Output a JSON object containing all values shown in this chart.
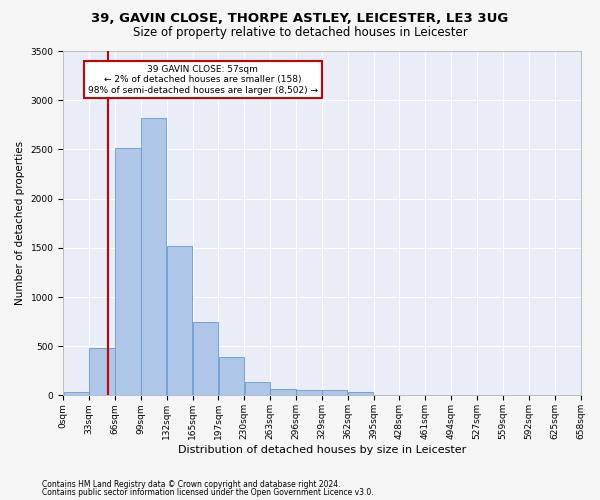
{
  "title1": "39, GAVIN CLOSE, THORPE ASTLEY, LEICESTER, LE3 3UG",
  "title2": "Size of property relative to detached houses in Leicester",
  "xlabel": "Distribution of detached houses by size in Leicester",
  "ylabel": "Number of detached properties",
  "bar_values": [
    30,
    480,
    2510,
    2820,
    1520,
    750,
    390,
    140,
    70,
    55,
    60,
    30,
    0,
    0,
    0,
    0,
    0,
    0,
    0,
    0
  ],
  "bin_labels": [
    "0sqm",
    "33sqm",
    "66sqm",
    "99sqm",
    "132sqm",
    "165sqm",
    "197sqm",
    "230sqm",
    "263sqm",
    "296sqm",
    "329sqm",
    "362sqm",
    "395sqm",
    "428sqm",
    "461sqm",
    "494sqm",
    "527sqm",
    "559sqm",
    "592sqm",
    "625sqm",
    "658sqm"
  ],
  "bar_color": "#aec6e8",
  "bar_edge_color": "#6699cc",
  "vline_x": 57,
  "vline_color": "#cc0000",
  "annotation_text": "39 GAVIN CLOSE: 57sqm\n← 2% of detached houses are smaller (158)\n98% of semi-detached houses are larger (8,502) →",
  "annotation_box_color": "#cc0000",
  "annotation_bg_color": "#ffffff",
  "ylim": [
    0,
    3500
  ],
  "yticks": [
    0,
    500,
    1000,
    1500,
    2000,
    2500,
    3000,
    3500
  ],
  "footer1": "Contains HM Land Registry data © Crown copyright and database right 2024.",
  "footer2": "Contains public sector information licensed under the Open Government Licence v3.0.",
  "bg_color": "#e8edf7",
  "grid_color": "#ffffff",
  "fig_bg_color": "#f5f5f5",
  "title1_fontsize": 9.5,
  "title2_fontsize": 8.5,
  "xlabel_fontsize": 8,
  "ylabel_fontsize": 7.5,
  "annotation_fontsize": 6.5,
  "tick_fontsize": 6.5,
  "footer_fontsize": 5.5
}
